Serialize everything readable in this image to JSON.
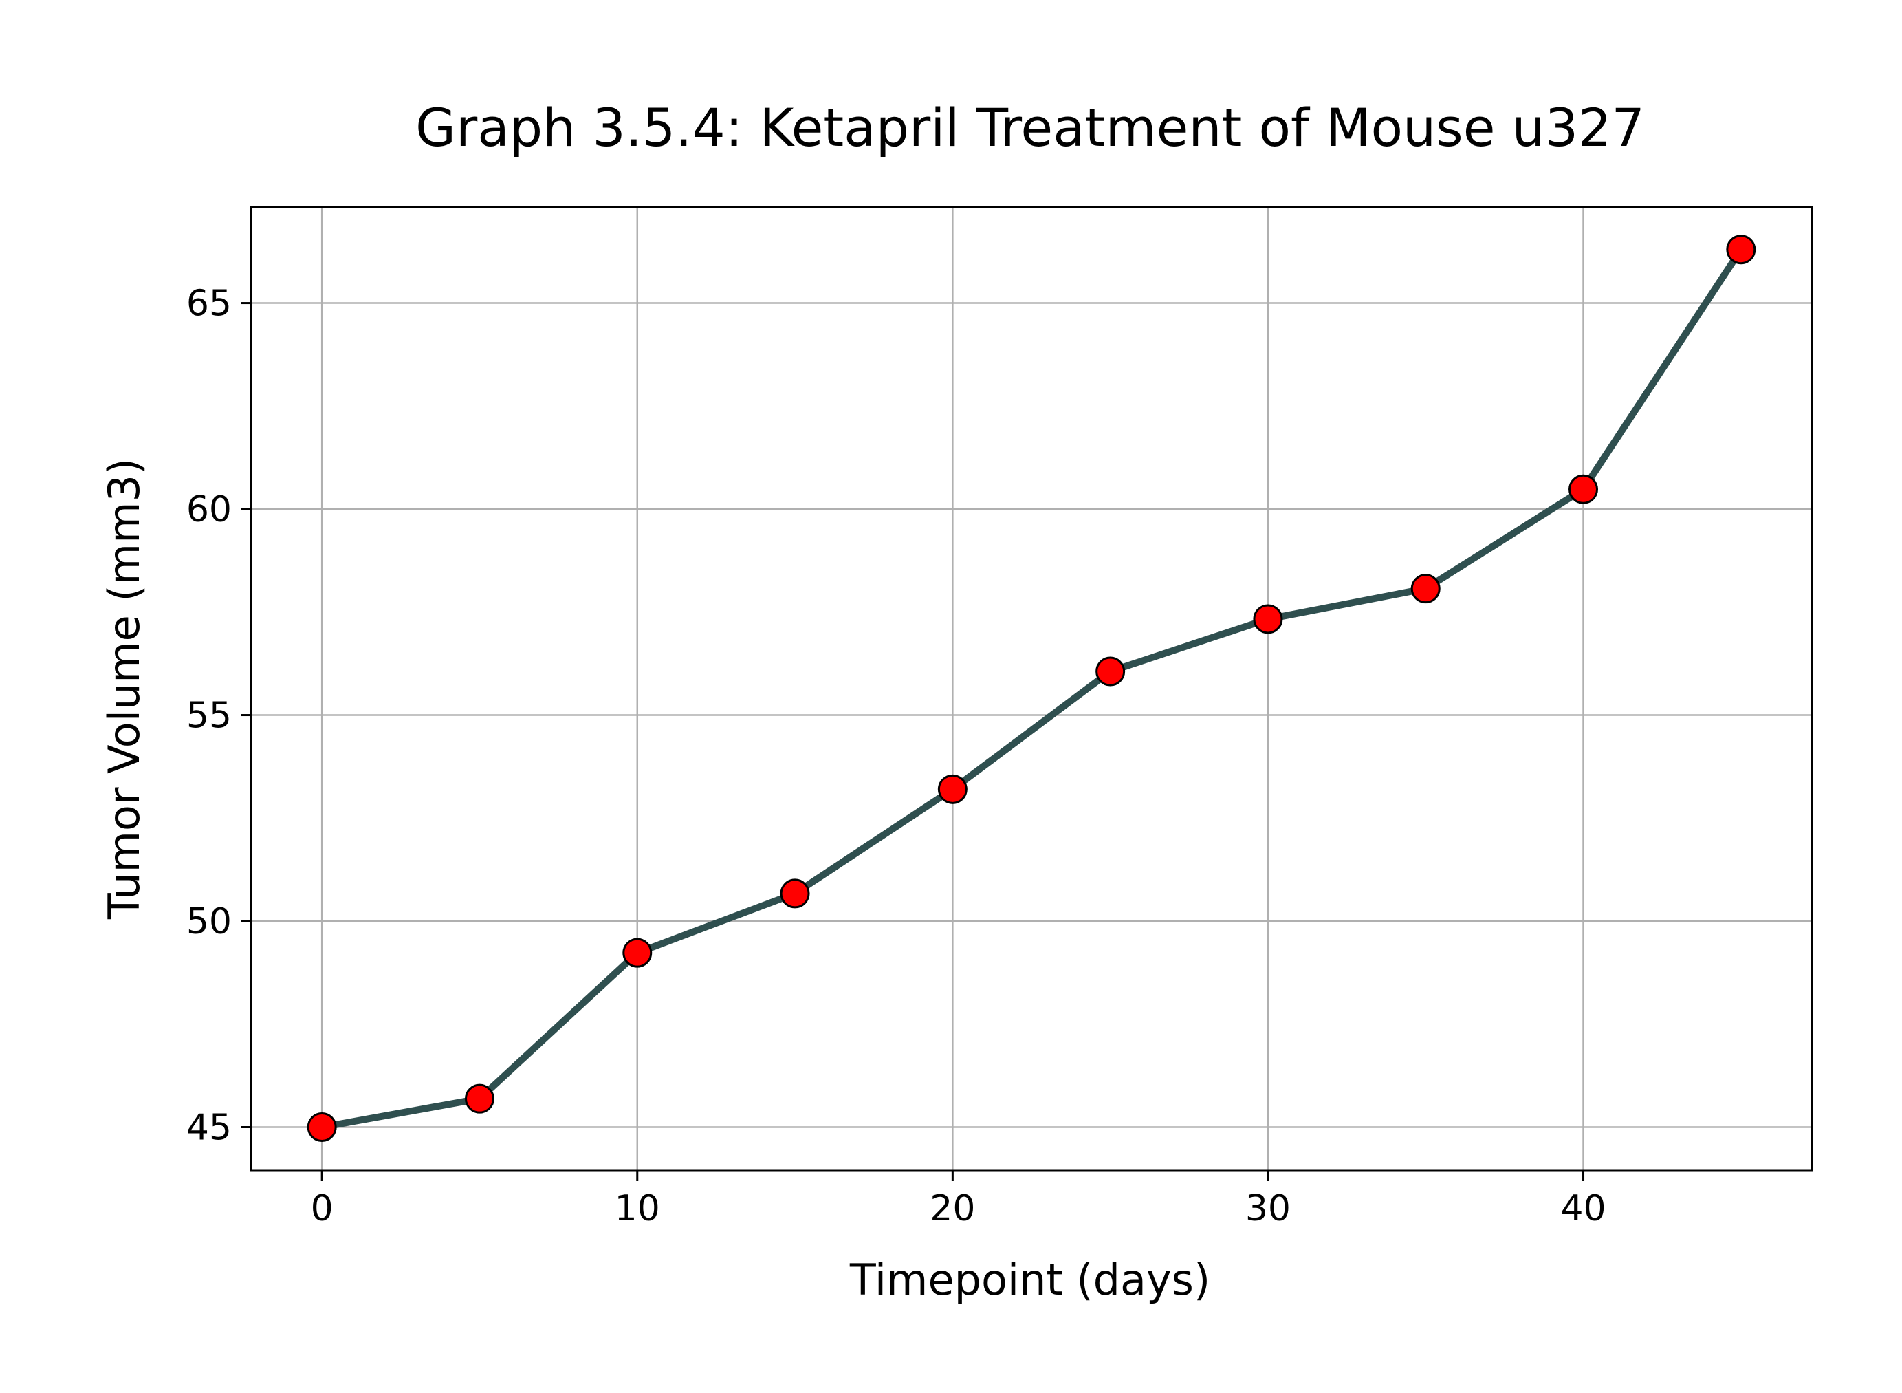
{
  "chart_data": {
    "type": "line",
    "title": "Graph 3.5.4: Ketapril Treatment of Mouse u327",
    "xlabel": "Timepoint (days)",
    "ylabel": "Tumor Volume (mm3)",
    "xlim": [
      -2.25,
      47.25
    ],
    "ylim": [
      43.94,
      67.33
    ],
    "xticks": [
      0,
      10,
      20,
      30,
      40
    ],
    "yticks": [
      45,
      50,
      55,
      60,
      65
    ],
    "grid": true,
    "x": [
      0,
      5,
      10,
      15,
      20,
      25,
      30,
      35,
      40,
      45
    ],
    "series": [
      {
        "values": [
          45.0,
          45.69,
          49.23,
          50.67,
          53.2,
          56.06,
          57.33,
          58.07,
          60.48,
          66.3
        ],
        "line_color": "#2f4f4f",
        "marker_color": "#ff0000",
        "marker_edge_color": "#000000"
      }
    ],
    "colors": {
      "grid": "#b0b0b0",
      "axes": "#000000",
      "background": "#ffffff"
    }
  }
}
